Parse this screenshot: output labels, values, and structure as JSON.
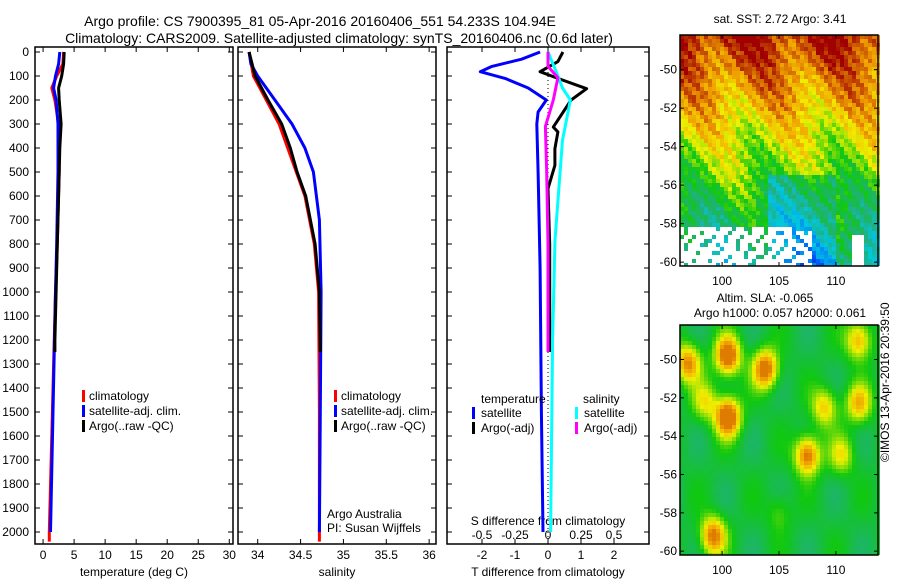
{
  "header": {
    "line1": "Argo profile: CS 7900395_81 05-Apr-2016 20160406_551 54.233S 104.94E",
    "line2": "Climatology: CARS2009. Satellite-adjusted climatology: synTS_20160406.nc (0.6d later)"
  },
  "chart_data": [
    {
      "type": "line",
      "xlabel": "temperature (deg C)",
      "ylabel": "",
      "xlim": [
        -1.3,
        30.6
      ],
      "ylim": [
        2050,
        -20
      ],
      "xticks": [
        "0",
        "5",
        "10",
        "15",
        "20",
        "25",
        "30"
      ],
      "xtick_values": [
        0,
        5,
        10,
        15,
        20,
        25,
        30
      ],
      "yticks": [
        "0",
        "100",
        "200",
        "300",
        "400",
        "500",
        "600",
        "700",
        "800",
        "900",
        "1000",
        "1100",
        "1200",
        "1300",
        "1400",
        "1500",
        "1600",
        "1700",
        "1800",
        "1900",
        "2000"
      ],
      "legend": [
        "climatology",
        "satellite-adj. clim.",
        "Argo(..raw -QC)"
      ],
      "series": [
        {
          "name": "climatology",
          "color": "#ff0000",
          "depth": [
            0,
            50,
            100,
            150,
            200,
            300,
            500,
            800,
            1000,
            1500,
            2000,
            2040
          ],
          "values": [
            3.3,
            3.2,
            2.2,
            1.4,
            1.9,
            2.5,
            2.6,
            2.3,
            2.0,
            1.5,
            1.0,
            1.0
          ]
        },
        {
          "name": "satellite-adj. clim.",
          "color": "#0000ff",
          "depth": [
            0,
            50,
            100,
            150,
            200,
            300,
            500,
            800,
            1000,
            1500,
            2000
          ],
          "values": [
            2.7,
            2.5,
            2.0,
            1.7,
            2.1,
            2.4,
            2.4,
            2.2,
            2.0,
            1.6,
            1.2
          ]
        },
        {
          "name": "Argo(..raw -QC)",
          "color": "#000000",
          "depth": [
            0,
            50,
            100,
            150,
            200,
            300,
            400,
            600,
            800,
            1000,
            1200,
            1250
          ],
          "values": [
            3.4,
            3.3,
            3.0,
            2.5,
            2.6,
            2.9,
            2.7,
            2.5,
            2.3,
            2.1,
            1.9,
            1.9
          ]
        }
      ]
    },
    {
      "type": "line",
      "xlabel": "salinity",
      "xlim": [
        33.77,
        36.08
      ],
      "ylim": [
        2050,
        -20
      ],
      "xticks": [
        "34",
        "34.5",
        "35",
        "35.5",
        "36"
      ],
      "xtick_values": [
        34,
        34.5,
        35,
        35.5,
        36
      ],
      "legend": [
        "climatology",
        "satellite-adj. clim.",
        "Argo(..raw -QC)"
      ],
      "annotations": [
        "Argo Australia",
        "PI: Susan Wijffels"
      ],
      "series": [
        {
          "name": "climatology",
          "color": "#ff0000",
          "depth": [
            0,
            100,
            200,
            300,
            400,
            500,
            600,
            800,
            1000,
            1500,
            2000,
            2040
          ],
          "values": [
            33.9,
            33.95,
            34.1,
            34.25,
            34.35,
            34.45,
            34.55,
            34.66,
            34.71,
            34.72,
            34.72,
            34.72
          ]
        },
        {
          "name": "satellite-adj. clim.",
          "color": "#0000ff",
          "depth": [
            0,
            50,
            100,
            200,
            300,
            400,
            500,
            700,
            1000,
            1500,
            2000
          ],
          "values": [
            33.9,
            33.92,
            34.0,
            34.2,
            34.4,
            34.55,
            34.65,
            34.72,
            34.74,
            34.73,
            34.72
          ]
        },
        {
          "name": "Argo(..raw -QC)",
          "color": "#000000",
          "depth": [
            0,
            100,
            200,
            300,
            400,
            500,
            600,
            800,
            1000,
            1250
          ],
          "values": [
            33.9,
            33.97,
            34.12,
            34.28,
            34.38,
            34.46,
            34.56,
            34.67,
            34.72,
            34.73
          ]
        }
      ]
    },
    {
      "type": "line",
      "xlabel": "T difference from climatology",
      "xlim": [
        -3.06,
        3.06
      ],
      "ylim": [
        2050,
        -20
      ],
      "xticks": [
        "-2",
        "-1",
        "0",
        "1",
        "2"
      ],
      "xtick_values": [
        -2,
        -1,
        0,
        1,
        2
      ],
      "secondary_xlabel": "S difference from climatology",
      "secondary_xticks": [
        "-0.5",
        "-0.25",
        "0",
        "0.25",
        "0.5"
      ],
      "secondary_xtick_values": [
        -0.5,
        -0.25,
        0,
        0.25,
        0.5
      ],
      "legend_temperature": {
        "title": "temperature",
        "items": [
          "satellite",
          "Argo(-adj)"
        ]
      },
      "legend_salinity": {
        "title": "salinity",
        "items": [
          "satellite",
          "Argo(-adj)"
        ]
      },
      "series": [
        {
          "name": "temperature satellite",
          "color": "#0000ff",
          "axis": "T",
          "depth": [
            0,
            30,
            60,
            82,
            110,
            150,
            200,
            250,
            300,
            500,
            900,
            1500,
            2000
          ],
          "values": [
            -0.24,
            -0.8,
            -1.7,
            -2.05,
            -1.3,
            -0.6,
            -0.05,
            -0.3,
            -0.34,
            -0.3,
            -0.24,
            -0.2,
            -0.15
          ]
        },
        {
          "name": "temperature Argo(-adj)",
          "color": "#000000",
          "axis": "T",
          "depth": [
            0,
            40,
            82,
            110,
            153,
            200,
            313,
            333,
            403,
            472,
            569,
            800,
            1000,
            1250
          ],
          "values": [
            0.45,
            0.3,
            -0.24,
            0.3,
            1.17,
            0.7,
            0.16,
            0.3,
            0.21,
            0.21,
            0.0,
            0.05,
            0.05,
            0.05
          ]
        },
        {
          "name": "salinity satellite",
          "color": "#00ffff",
          "axis": "S",
          "depth": [
            0,
            87,
            150,
            200,
            367,
            783,
            1200,
            2000
          ],
          "values": [
            0.0,
            0.066,
            0.11,
            0.17,
            0.11,
            0.053,
            0.035,
            0.02
          ]
        },
        {
          "name": "salinity Argo(-adj)",
          "color": "#ff00ff",
          "axis": "S",
          "depth": [
            0,
            60,
            107,
            200,
            310,
            500,
            800,
            1250
          ],
          "values": [
            0.0,
            0.0,
            0.075,
            0.04,
            -0.02,
            -0.01,
            0.0,
            0.0
          ]
        }
      ]
    },
    {
      "type": "heatmap",
      "title": "sat. SST: 2.72 Argo: 3.41",
      "xlim": [
        96.3,
        113.7
      ],
      "ylim": [
        -60.2,
        -48.2
      ],
      "xticks": [
        "100",
        "105",
        "110"
      ],
      "xtick_values": [
        100,
        105,
        110
      ],
      "yticks": [
        "-50",
        "-52",
        "-54",
        "-56",
        "-58",
        "-60"
      ],
      "ytick_values": [
        -50,
        -52,
        -54,
        -56,
        -58,
        -60
      ]
    },
    {
      "type": "heatmap",
      "title_line1": "Altim. SLA: -0.065",
      "title_line2": "Argo h1000: 0.057 h2000: 0.061",
      "xlim": [
        96.3,
        113.7
      ],
      "ylim": [
        -60.2,
        -48.2
      ],
      "xticks": [
        "100",
        "105",
        "110"
      ],
      "xtick_values": [
        100,
        105,
        110
      ],
      "yticks": [
        "-50",
        "-52",
        "-54",
        "-56",
        "-58",
        "-60"
      ],
      "ytick_values": [
        -50,
        -52,
        -54,
        -56,
        -58,
        -60
      ]
    }
  ],
  "footer": {
    "credit": "©IMOS 13-Apr-2016 20:39:50"
  }
}
